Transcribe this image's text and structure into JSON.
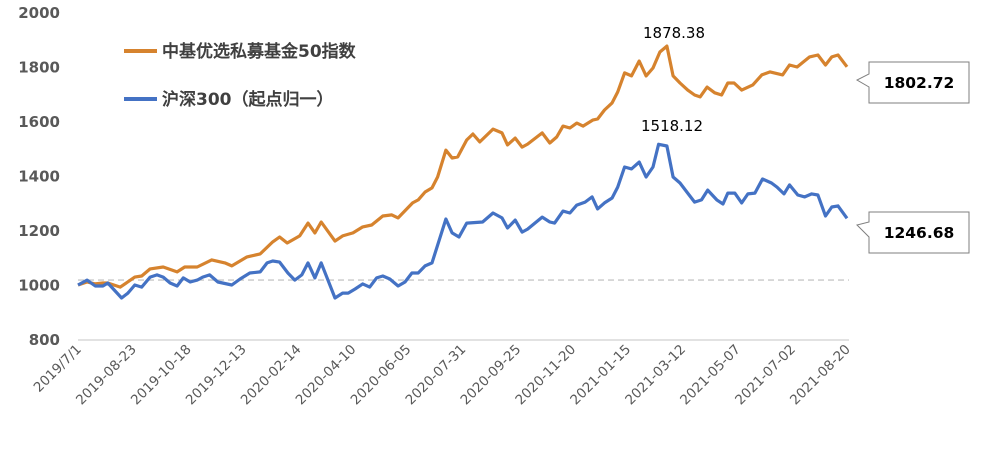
{
  "chart_data": {
    "type": "line",
    "title": "",
    "xlabel": "",
    "ylabel": "",
    "ylim": [
      800,
      2000
    ],
    "yticks": [
      2000,
      1800,
      1600,
      1400,
      1200,
      1000,
      800
    ],
    "x_unit": "weeks since 2019-07-01",
    "xlim": [
      0,
      111
    ],
    "xtick_labels": [
      "2019/7/1",
      "2019-08-23",
      "2019-10-18",
      "2019-12-13",
      "2020-02-14",
      "2020-04-10",
      "2020-06-05",
      "2020-07-31",
      "2020-09-25",
      "2020-11-20",
      "2021-01-15",
      "2021-03-12",
      "2021-05-07",
      "2021-07-02",
      "2021-08-20"
    ],
    "reference_line": 1020,
    "legend_position": "top-left",
    "colors": {
      "orange": "#D6832E",
      "blue": "#4472C4",
      "axis": "#D9D9D9",
      "ref": "#C8C8C8"
    },
    "series": [
      {
        "name": "中基优选私募基金50指数",
        "color": "#D6832E",
        "points": [
          [
            0,
            1002
          ],
          [
            1.3,
            1013
          ],
          [
            2.5,
            1006
          ],
          [
            3.6,
            1009
          ],
          [
            4.3,
            1009
          ],
          [
            6.1,
            994
          ],
          [
            8.2,
            1031
          ],
          [
            9.2,
            1035
          ],
          [
            10.4,
            1061
          ],
          [
            12.3,
            1068
          ],
          [
            14.3,
            1050
          ],
          [
            15.4,
            1068
          ],
          [
            17.2,
            1068
          ],
          [
            19.3,
            1094
          ],
          [
            21.2,
            1083
          ],
          [
            22.2,
            1072
          ],
          [
            24.4,
            1105
          ],
          [
            26.3,
            1116
          ],
          [
            28.1,
            1160
          ],
          [
            29.1,
            1178
          ],
          [
            30.2,
            1156
          ],
          [
            32.0,
            1182
          ],
          [
            33.2,
            1229
          ],
          [
            34.2,
            1193
          ],
          [
            35.1,
            1233
          ],
          [
            37.1,
            1163
          ],
          [
            38.2,
            1182
          ],
          [
            39.7,
            1193
          ],
          [
            41.1,
            1215
          ],
          [
            42.4,
            1222
          ],
          [
            44.0,
            1255
          ],
          [
            45.3,
            1259
          ],
          [
            46.2,
            1248
          ],
          [
            48.3,
            1303
          ],
          [
            49.1,
            1314
          ],
          [
            50.1,
            1343
          ],
          [
            51.1,
            1358
          ],
          [
            51.9,
            1398
          ],
          [
            53.1,
            1497
          ],
          [
            54.0,
            1468
          ],
          [
            54.8,
            1472
          ],
          [
            56.1,
            1534
          ],
          [
            57.0,
            1556
          ],
          [
            58.0,
            1527
          ],
          [
            59.9,
            1574
          ],
          [
            61.2,
            1560
          ],
          [
            62.0,
            1516
          ],
          [
            63.1,
            1541
          ],
          [
            64.1,
            1508
          ],
          [
            64.9,
            1519
          ],
          [
            67.0,
            1560
          ],
          [
            68.1,
            1523
          ],
          [
            69.1,
            1545
          ],
          [
            70.0,
            1585
          ],
          [
            71.0,
            1578
          ],
          [
            72.0,
            1596
          ],
          [
            72.9,
            1585
          ],
          [
            74.3,
            1607
          ],
          [
            75.0,
            1611
          ],
          [
            76.0,
            1644
          ],
          [
            77.1,
            1670
          ],
          [
            77.9,
            1710
          ],
          [
            78.9,
            1780
          ],
          [
            79.9,
            1769
          ],
          [
            81.0,
            1824
          ],
          [
            82.0,
            1769
          ],
          [
            83.0,
            1798
          ],
          [
            84.0,
            1857
          ],
          [
            85.0,
            1878.38
          ],
          [
            85.9,
            1769
          ],
          [
            86.9,
            1743
          ],
          [
            88.0,
            1717
          ],
          [
            89.0,
            1699
          ],
          [
            89.8,
            1692
          ],
          [
            90.8,
            1728
          ],
          [
            91.9,
            1707
          ],
          [
            92.9,
            1699
          ],
          [
            93.8,
            1743
          ],
          [
            94.7,
            1743
          ],
          [
            95.8,
            1717
          ],
          [
            97.4,
            1736
          ],
          [
            98.7,
            1773
          ],
          [
            99.9,
            1784
          ],
          [
            101.7,
            1773
          ],
          [
            102.7,
            1809
          ],
          [
            103.8,
            1802
          ],
          [
            105.6,
            1839
          ],
          [
            106.8,
            1846
          ],
          [
            107.9,
            1809
          ],
          [
            108.8,
            1839
          ],
          [
            109.7,
            1846
          ],
          [
            111.0,
            1802.72
          ]
        ],
        "peak_label": "1878.38",
        "end_label": "1802.72"
      },
      {
        "name": "沪深300（起点归一）",
        "color": "#4472C4",
        "points": [
          [
            0,
            1002
          ],
          [
            1.3,
            1020
          ],
          [
            2.5,
            998
          ],
          [
            3.6,
            998
          ],
          [
            4.3,
            1009
          ],
          [
            6.3,
            954
          ],
          [
            7.2,
            972
          ],
          [
            8.2,
            1002
          ],
          [
            9.2,
            994
          ],
          [
            10.4,
            1031
          ],
          [
            11.4,
            1039
          ],
          [
            12.3,
            1031
          ],
          [
            13.3,
            1009
          ],
          [
            14.3,
            998
          ],
          [
            15.2,
            1028
          ],
          [
            16.2,
            1013
          ],
          [
            17.2,
            1020
          ],
          [
            18.0,
            1031
          ],
          [
            19.0,
            1039
          ],
          [
            20.2,
            1013
          ],
          [
            22.2,
            1002
          ],
          [
            23.4,
            1024
          ],
          [
            24.8,
            1046
          ],
          [
            26.3,
            1050
          ],
          [
            27.3,
            1083
          ],
          [
            28.1,
            1090
          ],
          [
            29.1,
            1086
          ],
          [
            30.3,
            1046
          ],
          [
            31.3,
            1020
          ],
          [
            32.3,
            1039
          ],
          [
            33.2,
            1083
          ],
          [
            34.2,
            1028
          ],
          [
            35.1,
            1083
          ],
          [
            37.1,
            954
          ],
          [
            38.2,
            972
          ],
          [
            39.0,
            972
          ],
          [
            40.0,
            987
          ],
          [
            41.1,
            1006
          ],
          [
            42.1,
            994
          ],
          [
            43.1,
            1028
          ],
          [
            44.0,
            1035
          ],
          [
            45.0,
            1024
          ],
          [
            46.2,
            998
          ],
          [
            47.2,
            1013
          ],
          [
            48.2,
            1046
          ],
          [
            49.1,
            1046
          ],
          [
            50.1,
            1072
          ],
          [
            51.1,
            1083
          ],
          [
            53.1,
            1244
          ],
          [
            54.0,
            1193
          ],
          [
            55.0,
            1178
          ],
          [
            56.1,
            1229
          ],
          [
            58.4,
            1233
          ],
          [
            59.9,
            1266
          ],
          [
            61.2,
            1248
          ],
          [
            62.0,
            1211
          ],
          [
            63.1,
            1240
          ],
          [
            64.1,
            1196
          ],
          [
            64.9,
            1207
          ],
          [
            67.0,
            1251
          ],
          [
            68.1,
            1233
          ],
          [
            68.8,
            1229
          ],
          [
            70.0,
            1273
          ],
          [
            71.0,
            1266
          ],
          [
            72.0,
            1295
          ],
          [
            73.2,
            1306
          ],
          [
            74.2,
            1325
          ],
          [
            75.0,
            1281
          ],
          [
            76.0,
            1303
          ],
          [
            77.1,
            1321
          ],
          [
            77.9,
            1361
          ],
          [
            78.9,
            1435
          ],
          [
            79.9,
            1428
          ],
          [
            81.0,
            1453
          ],
          [
            82.0,
            1398
          ],
          [
            83.0,
            1435
          ],
          [
            83.8,
            1518.12
          ],
          [
            85.0,
            1512
          ],
          [
            85.9,
            1398
          ],
          [
            86.9,
            1376
          ],
          [
            88.0,
            1339
          ],
          [
            89.0,
            1306
          ],
          [
            90.0,
            1314
          ],
          [
            90.9,
            1350
          ],
          [
            92.2,
            1314
          ],
          [
            93.1,
            1299
          ],
          [
            93.8,
            1339
          ],
          [
            94.8,
            1339
          ],
          [
            95.8,
            1303
          ],
          [
            96.7,
            1336
          ],
          [
            97.7,
            1339
          ],
          [
            98.8,
            1391
          ],
          [
            100.1,
            1376
          ],
          [
            100.9,
            1361
          ],
          [
            101.9,
            1336
          ],
          [
            102.7,
            1369
          ],
          [
            103.9,
            1332
          ],
          [
            104.9,
            1325
          ],
          [
            105.9,
            1336
          ],
          [
            106.8,
            1332
          ],
          [
            107.9,
            1255
          ],
          [
            108.8,
            1288
          ],
          [
            109.7,
            1292
          ],
          [
            111.0,
            1246.68
          ]
        ],
        "peak_label": "1518.12",
        "end_label": "1246.68"
      }
    ]
  }
}
